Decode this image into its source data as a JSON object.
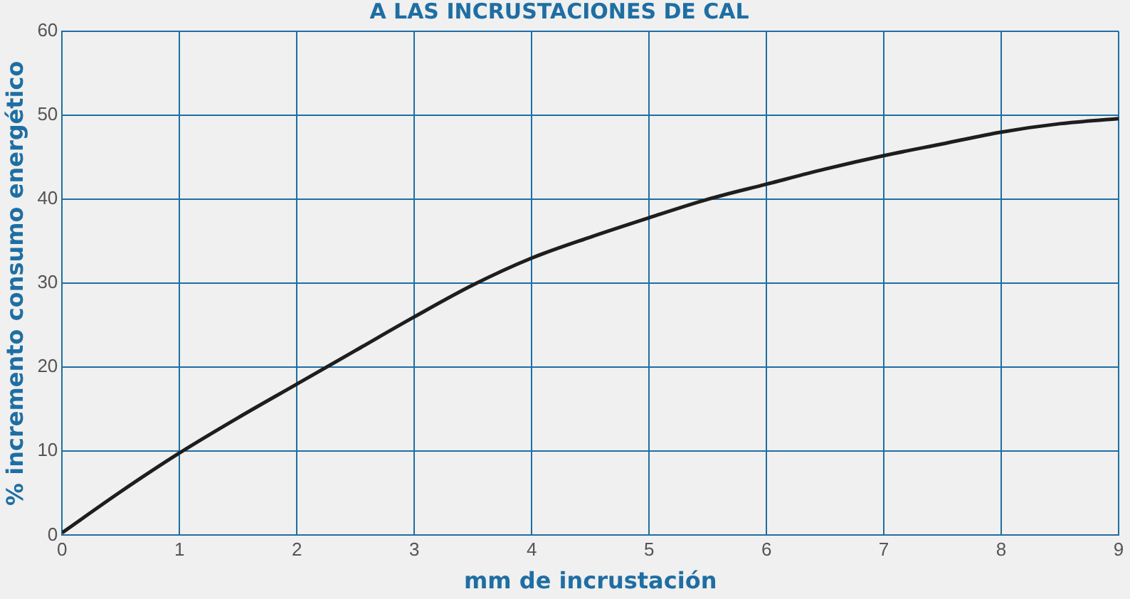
{
  "chart_data": {
    "type": "line",
    "title": "A LAS INCRUSTACIONES DE CAL",
    "xlabel": "mm de incrustación",
    "ylabel": "% incremento consumo energético",
    "x": [
      0,
      0.5,
      1,
      1.5,
      2,
      2.5,
      3,
      3.5,
      4,
      4.5,
      5,
      5.5,
      6,
      6.5,
      7,
      7.5,
      8,
      8.5,
      9
    ],
    "series": [
      {
        "color": "#1e1e1e",
        "values": [
          0.3,
          5.2,
          9.8,
          14,
          18,
          22,
          26,
          29.8,
          33,
          35.5,
          37.8,
          40,
          41.8,
          43.6,
          45.2,
          46.6,
          48,
          49,
          49.6
        ]
      }
    ],
    "xlim": [
      0,
      9
    ],
    "xticks": [
      0,
      1,
      2,
      3,
      4,
      5,
      6,
      7,
      8,
      9
    ],
    "ylim": [
      0,
      60
    ],
    "yticks": [
      0,
      10,
      20,
      30,
      40,
      50,
      60
    ],
    "grid": true,
    "legend": false,
    "marker": "none",
    "line_style": "solid"
  }
}
